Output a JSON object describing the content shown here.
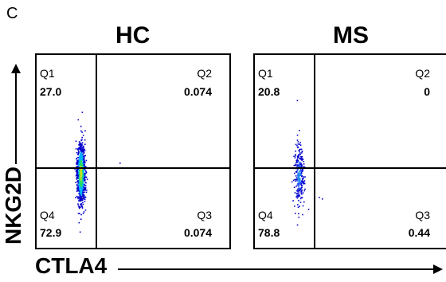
{
  "panel_letter": "C",
  "chart_data": [
    {
      "type": "scatter",
      "title": "HC",
      "xlabel": "CTLA4",
      "ylabel": "NKG2D",
      "quadrants": {
        "Q1": {
          "label": "Q1",
          "value": "27.0"
        },
        "Q2": {
          "label": "Q2",
          "value": "0.074"
        },
        "Q3": {
          "label": "Q3",
          "value": "0.074"
        },
        "Q4": {
          "label": "Q4",
          "value": "72.9"
        }
      },
      "density_colors": [
        "#0000cc",
        "#2266ff",
        "#00b0ff",
        "#22dd66",
        "#c8e020"
      ]
    },
    {
      "type": "scatter",
      "title": "MS",
      "xlabel": "CTLA4",
      "ylabel": "NKG2D",
      "quadrants": {
        "Q1": {
          "label": "Q1",
          "value": "20.8"
        },
        "Q2": {
          "label": "Q2",
          "value": "0"
        },
        "Q3": {
          "label": "Q3",
          "value": "0.44"
        },
        "Q4": {
          "label": "Q4",
          "value": "78.8"
        }
      },
      "density_colors": [
        "#0000cc",
        "#2255ff",
        "#1188ee"
      ]
    }
  ]
}
